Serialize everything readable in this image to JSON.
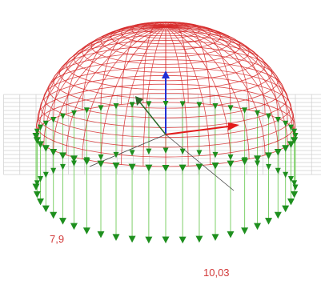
{
  "labels": {
    "left_value": "7,9",
    "right_value": "10,03"
  },
  "colors": {
    "dome": "#d62828",
    "grid": "#cfcfcf",
    "vectors": "#7fd06a",
    "vector_heads": "#1e8f1e",
    "axis_z": "#1f2fd6",
    "axis_x": "#e31b1b"
  }
}
